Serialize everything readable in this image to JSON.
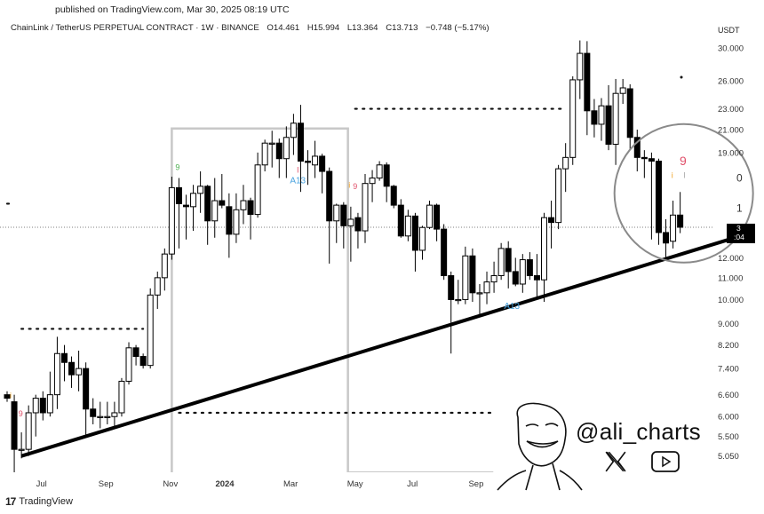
{
  "header": {
    "published": "published on TradingView.com, Mar 30, 2025 08:19 UTC",
    "symbol": "ChainLink / TetherUS PERPETUAL CONTRACT · 1W · BINANCE",
    "open": "O14.461",
    "high": "H15.994",
    "low": "L13.364",
    "close": "C13.713",
    "change": "−0.748 (−5.17%)"
  },
  "footer": {
    "logo_text": "TradingView",
    "logo_mark": "17"
  },
  "watermark": {
    "handle": "@ali_charts",
    "icons": [
      "x-logo-icon",
      "youtube-icon",
      "cartoon-face-avatar"
    ]
  },
  "chart_data": {
    "type": "candlestick",
    "currency": "USDT",
    "scale": "log",
    "ylim": [
      4.7,
      31.5
    ],
    "y_ticks": [
      "30.000",
      "26.000",
      "23.000",
      "21.000",
      "19.000",
      "12.000",
      "11.000",
      "10.000",
      "9.000",
      "8.200",
      "7.400",
      "6.600",
      "6.000",
      "5.500",
      "5.050"
    ],
    "x_ticks": [
      {
        "label": "Jul",
        "index": 4.8
      },
      {
        "label": "Sep",
        "index": 13.8
      },
      {
        "label": "Nov",
        "index": 22.8
      },
      {
        "label": "2024",
        "index": 30.4,
        "bold": true
      },
      {
        "label": "Mar",
        "index": 39.6
      },
      {
        "label": "May",
        "index": 48.6
      },
      {
        "label": "Jul",
        "index": 56.6
      },
      {
        "label": "Sep",
        "index": 65.5
      }
    ],
    "colors": {
      "up_fill": "#ffffff",
      "down_fill": "#000000",
      "wick": "#000000",
      "trendline": "#000000",
      "step_line": "#c8c8c8",
      "circle": "#8a8a8a",
      "green_label": "#4caf50",
      "red_label": "#e0506a",
      "blue_label": "#4aa3df",
      "orange_label": "#f0a020"
    },
    "candles": [
      [
        6.6,
        6.7,
        6.4,
        6.5
      ],
      [
        6.4,
        6.6,
        4.7,
        5.2
      ],
      [
        5.2,
        5.6,
        5.0,
        5.2
      ],
      [
        5.2,
        6.3,
        5.05,
        6.1
      ],
      [
        6.1,
        6.6,
        5.5,
        6.5
      ],
      [
        6.5,
        6.7,
        5.9,
        6.1
      ],
      [
        6.1,
        7.3,
        6.0,
        6.6
      ],
      [
        6.6,
        8.5,
        6.2,
        7.9
      ],
      [
        7.9,
        8.2,
        7.0,
        7.6
      ],
      [
        7.6,
        7.8,
        6.8,
        7.2
      ],
      [
        7.2,
        8.0,
        6.7,
        7.4
      ],
      [
        7.4,
        7.6,
        5.5,
        6.2
      ],
      [
        6.2,
        6.5,
        5.8,
        6.0
      ],
      [
        6.0,
        6.4,
        5.7,
        6.0
      ],
      [
        6.0,
        6.4,
        5.8,
        6.0
      ],
      [
        6.0,
        6.4,
        5.7,
        6.1
      ],
      [
        6.1,
        7.1,
        6.0,
        7.0
      ],
      [
        7.0,
        8.3,
        6.9,
        8.1
      ],
      [
        8.1,
        8.2,
        7.5,
        7.8
      ],
      [
        7.8,
        7.9,
        7.4,
        7.5
      ],
      [
        7.5,
        10.5,
        7.4,
        10.2
      ],
      [
        10.2,
        11.3,
        9.6,
        11.0
      ],
      [
        11.0,
        12.5,
        10.4,
        12.2
      ],
      [
        12.2,
        17.1,
        11.9,
        16.3
      ],
      [
        16.3,
        17.0,
        12.5,
        15.2
      ],
      [
        15.1,
        15.8,
        13.0,
        15.0
      ],
      [
        15.0,
        16.5,
        13.5,
        15.9
      ],
      [
        15.9,
        17.5,
        14.6,
        16.4
      ],
      [
        16.4,
        16.5,
        12.7,
        14.1
      ],
      [
        14.1,
        17.0,
        13.1,
        15.4
      ],
      [
        15.4,
        17.3,
        14.9,
        15.1
      ],
      [
        15.0,
        15.9,
        12.0,
        13.3
      ],
      [
        13.3,
        15.9,
        12.8,
        14.8
      ],
      [
        14.8,
        16.5,
        13.9,
        15.4
      ],
      [
        15.4,
        15.6,
        13.0,
        14.5
      ],
      [
        14.5,
        19.0,
        14.3,
        18.0
      ],
      [
        18.0,
        20.1,
        17.5,
        19.8
      ],
      [
        19.8,
        20.9,
        17.8,
        19.8
      ],
      [
        19.8,
        20.2,
        17.0,
        18.5
      ],
      [
        18.5,
        21.3,
        17.0,
        20.3
      ],
      [
        20.3,
        22.5,
        18.8,
        21.6
      ],
      [
        21.6,
        23.4,
        16.0,
        18.3
      ],
      [
        18.3,
        19.2,
        16.5,
        18.2
      ],
      [
        18.0,
        20.0,
        17.0,
        18.7
      ],
      [
        18.7,
        18.9,
        15.9,
        17.5
      ],
      [
        17.5,
        17.8,
        11.7,
        14.1
      ],
      [
        14.1,
        15.2,
        12.8,
        15.1
      ],
      [
        15.1,
        15.3,
        12.5,
        13.8
      ],
      [
        13.8,
        15.0,
        11.8,
        14.2
      ],
      [
        14.3,
        14.6,
        12.5,
        13.5
      ],
      [
        13.5,
        17.3,
        12.8,
        16.6
      ],
      [
        16.6,
        17.6,
        15.3,
        17.0
      ],
      [
        17.0,
        18.3,
        16.8,
        18.0
      ],
      [
        18.0,
        18.2,
        15.3,
        16.4
      ],
      [
        16.4,
        16.5,
        14.9,
        15.1
      ],
      [
        15.1,
        15.5,
        13.1,
        13.2
      ],
      [
        13.2,
        14.8,
        12.9,
        14.4
      ],
      [
        14.4,
        14.6,
        11.3,
        12.4
      ],
      [
        12.4,
        13.8,
        11.9,
        13.7
      ],
      [
        13.7,
        15.4,
        13.6,
        15.1
      ],
      [
        15.1,
        15.2,
        12.9,
        13.6
      ],
      [
        13.6,
        13.9,
        10.9,
        11.1
      ],
      [
        11.1,
        11.3,
        7.9,
        10.0
      ],
      [
        10.0,
        10.9,
        9.8,
        10.0
      ],
      [
        10.0,
        12.6,
        9.8,
        12.1
      ],
      [
        12.1,
        12.5,
        9.9,
        10.3
      ],
      [
        10.3,
        10.7,
        9.3,
        10.3
      ],
      [
        10.3,
        11.3,
        9.8,
        10.8
      ],
      [
        10.8,
        11.8,
        10.3,
        11.1
      ],
      [
        11.1,
        12.8,
        10.9,
        12.5
      ],
      [
        12.5,
        12.9,
        10.5,
        11.3
      ],
      [
        11.3,
        12.0,
        10.6,
        10.7
      ],
      [
        10.7,
        12.2,
        10.3,
        11.9
      ],
      [
        11.9,
        12.3,
        10.9,
        11.1
      ],
      [
        11.1,
        12.2,
        10.1,
        10.9
      ],
      [
        10.9,
        14.6,
        9.9,
        14.3
      ],
      [
        14.3,
        15.4,
        12.5,
        14.0
      ],
      [
        14.0,
        18.0,
        13.6,
        17.7
      ],
      [
        17.7,
        19.8,
        16.0,
        18.6
      ],
      [
        18.6,
        26.5,
        18.0,
        26.1
      ],
      [
        26.1,
        31.0,
        24.0,
        29.3
      ],
      [
        29.3,
        30.9,
        20.5,
        22.8
      ],
      [
        22.8,
        24.0,
        20.3,
        21.5
      ],
      [
        21.5,
        24.1,
        20.0,
        23.3
      ],
      [
        23.3,
        25.5,
        19.2,
        19.7
      ],
      [
        19.7,
        26.2,
        18.0,
        24.6
      ],
      [
        24.6,
        26.2,
        23.5,
        25.2
      ],
      [
        25.1,
        25.6,
        19.3,
        20.3
      ],
      [
        20.3,
        21.0,
        17.5,
        18.6
      ],
      [
        18.6,
        19.2,
        17.0,
        18.5
      ],
      [
        18.5,
        19.0,
        13.0,
        18.3
      ],
      [
        18.3,
        18.5,
        12.7,
        13.4
      ],
      [
        13.4,
        14.2,
        12.0,
        12.8
      ],
      [
        12.9,
        15.4,
        12.5,
        14.461
      ],
      [
        14.461,
        15.994,
        13.364,
        13.713
      ]
    ],
    "trendline": [
      {
        "index": 2,
        "price": 5.05
      },
      {
        "index": 104,
        "price": 13.4
      }
    ],
    "step_line": [
      {
        "index": 23,
        "price": 4.7
      },
      {
        "index": 23,
        "price": 21.1
      },
      {
        "index": 47.6,
        "price": 21.1
      },
      {
        "index": 47.6,
        "price": 4.7
      },
      {
        "index": 67.9,
        "price": 4.7
      }
    ],
    "dotted_levels": [
      {
        "price": 8.8,
        "from": 2,
        "to": 19
      },
      {
        "price": 23.0,
        "from": 48.6,
        "to": 77.5
      },
      {
        "price": 6.1,
        "from": 24,
        "to": 67.5
      },
      {
        "price": 15.2,
        "from": 0,
        "to": 1
      }
    ],
    "current_price": 13.713,
    "price_tag": {
      "line1": "3",
      "line2": ":04"
    },
    "axis_partial_labels": [
      {
        "text": "0",
        "price": 17.0
      },
      {
        "text": "1",
        "price": 14.9
      }
    ],
    "annotations": [
      {
        "text": "9",
        "index": 23.8,
        "price": 17.6,
        "color": "green"
      },
      {
        "text": "A13",
        "index": 40.6,
        "price": 16.6,
        "color": "blue"
      },
      {
        "text": "I",
        "index": 40.6,
        "price": 17.4,
        "color": "red"
      },
      {
        "text": "9",
        "index": 48.6,
        "price": 16.2,
        "color": "red"
      },
      {
        "text": "i",
        "index": 47.8,
        "price": 16.3,
        "color": "orange"
      },
      {
        "text": "A13",
        "index": 70.5,
        "price": 9.6,
        "color": "blue"
      },
      {
        "text": "9",
        "index": 1.9,
        "price": 6.0,
        "color": "red"
      },
      {
        "text": "i",
        "index": 0.5,
        "price": 6.5,
        "color": "orange"
      },
      {
        "text": "9",
        "index": 94.4,
        "price": 18.0,
        "color": "red"
      },
      {
        "text": "i",
        "index": 92.9,
        "price": 17.0,
        "color": "orange"
      },
      {
        "text": "I",
        "index": 94.6,
        "price": 17.0,
        "color": "gray"
      }
    ],
    "magnifier_circle": {
      "center_index": 94.5,
      "center_price": 15.9
    }
  }
}
